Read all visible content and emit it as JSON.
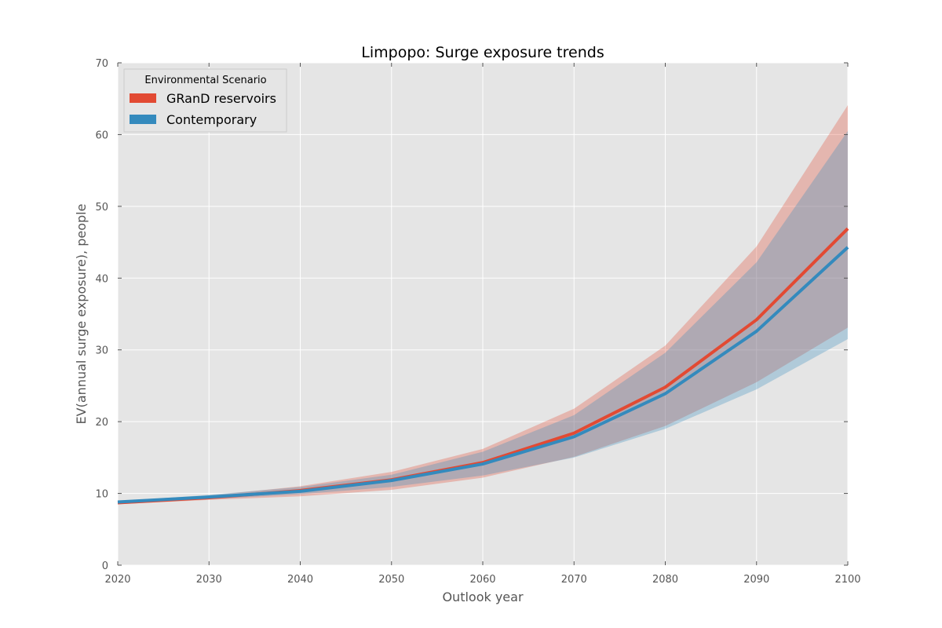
{
  "chart_data": {
    "type": "line",
    "title": "Limpopo: Surge exposure trends",
    "xlabel": "Outlook year",
    "ylabel": "EV(annual surge exposure), people",
    "xlim": [
      2020,
      2100
    ],
    "ylim": [
      0,
      70
    ],
    "xticks": [
      2020,
      2030,
      2040,
      2050,
      2060,
      2070,
      2080,
      2090,
      2100
    ],
    "yticks": [
      0,
      10,
      20,
      30,
      40,
      50,
      60,
      70
    ],
    "grid": true,
    "legend": {
      "title": "Environmental Scenario",
      "placement": "top-left"
    },
    "x": [
      2020,
      2030,
      2040,
      2050,
      2060,
      2070,
      2080,
      2090,
      2100
    ],
    "series": [
      {
        "name": "GRanD reservoirs",
        "color": "#E24A33",
        "values": [
          8.7,
          9.4,
          10.4,
          11.9,
          14.3,
          18.4,
          24.8,
          34.2,
          46.9
        ],
        "lower": [
          8.5,
          9.1,
          9.6,
          10.5,
          12.2,
          15.1,
          19.4,
          25.5,
          33.1
        ],
        "upper": [
          8.8,
          9.7,
          11.0,
          13.0,
          16.2,
          21.8,
          30.6,
          44.4,
          64.1
        ]
      },
      {
        "name": "Contemporary",
        "color": "#348ABD",
        "values": [
          8.8,
          9.5,
          10.3,
          11.8,
          14.1,
          17.9,
          23.9,
          32.6,
          44.3
        ],
        "lower": [
          8.6,
          9.2,
          9.9,
          10.9,
          12.5,
          15.0,
          19.0,
          24.5,
          31.5
        ],
        "upper": [
          8.9,
          9.8,
          10.9,
          12.6,
          15.8,
          20.9,
          29.6,
          42.2,
          60.5
        ]
      }
    ]
  }
}
